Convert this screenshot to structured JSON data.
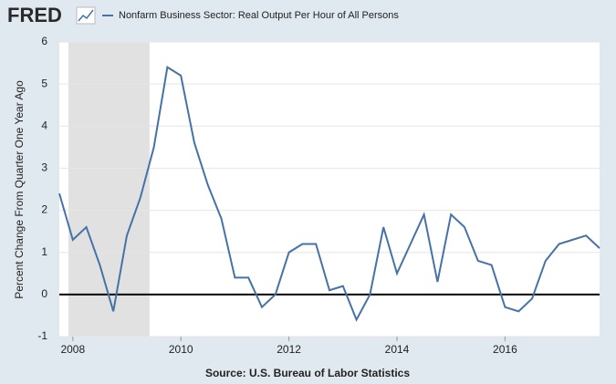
{
  "chart_data": {
    "type": "line",
    "logo": "FRED",
    "y_label": "Percent Change From Quarter One Year Ago",
    "source": "Source: U.S. Bureau of Labor Statistics",
    "x": [
      2007.75,
      2008.0,
      2008.25,
      2008.5,
      2008.75,
      2009.0,
      2009.25,
      2009.5,
      2009.75,
      2010.0,
      2010.25,
      2010.5,
      2010.75,
      2011.0,
      2011.25,
      2011.5,
      2011.75,
      2012.0,
      2012.25,
      2012.5,
      2012.75,
      2013.0,
      2013.25,
      2013.5,
      2013.75,
      2014.0,
      2014.25,
      2014.5,
      2014.75,
      2015.0,
      2015.25,
      2015.5,
      2015.75,
      2016.0,
      2016.25,
      2016.5,
      2016.75,
      2017.0,
      2017.25,
      2017.5,
      2017.75
    ],
    "series": [
      {
        "name": "Nonfarm Business Sector: Real Output Per Hour of All Persons",
        "color": "#4572a7",
        "values": [
          2.4,
          1.3,
          1.6,
          0.7,
          -0.4,
          1.4,
          2.3,
          3.5,
          5.4,
          5.2,
          3.6,
          2.6,
          1.8,
          0.4,
          0.4,
          -0.3,
          0.0,
          1.0,
          1.2,
          1.2,
          0.1,
          0.2,
          -0.6,
          0.0,
          1.6,
          0.5,
          1.2,
          1.9,
          0.3,
          1.9,
          1.6,
          0.8,
          0.7,
          -0.3,
          -0.4,
          -0.1,
          0.8,
          1.2,
          1.3,
          1.4,
          1.1
        ]
      }
    ],
    "recessions": [
      [
        2007.92,
        2009.42
      ]
    ],
    "xlim": [
      2007.75,
      2017.75
    ],
    "xticks": [
      2008,
      2010,
      2012,
      2014,
      2016
    ],
    "ylim": [
      -1,
      6
    ],
    "yticks": [
      -1,
      0,
      1,
      2,
      3,
      4,
      5,
      6
    ],
    "grid": true
  }
}
